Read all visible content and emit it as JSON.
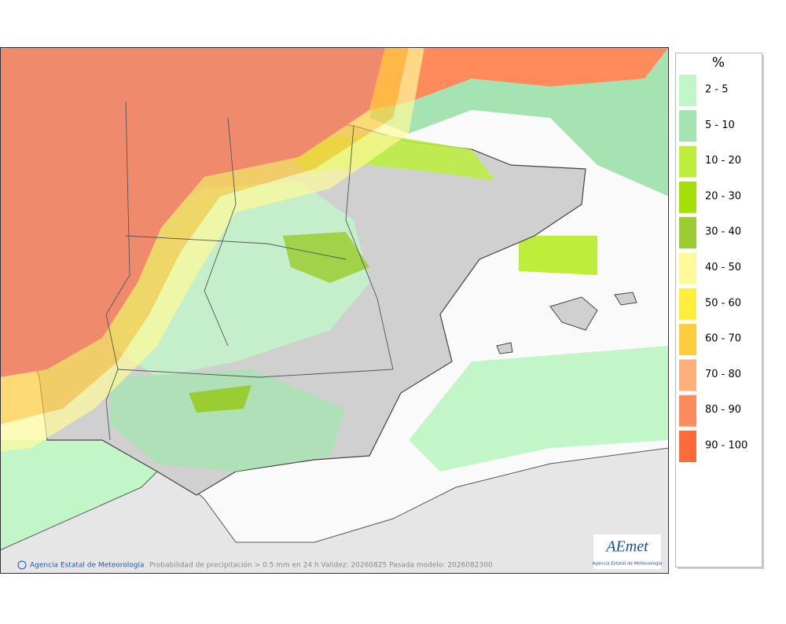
{
  "legend": {
    "title": "%",
    "items": [
      {
        "label": "2 - 5",
        "color": "#c2f5c8"
      },
      {
        "label": "5 - 10",
        "color": "#a6e3b2"
      },
      {
        "label": "10 - 20",
        "color": "#bdee3c"
      },
      {
        "label": "20 - 30",
        "color": "#a5df08"
      },
      {
        "label": "30 - 40",
        "color": "#9acd32"
      },
      {
        "label": "40 - 50",
        "color": "#fff99a"
      },
      {
        "label": "50 - 60",
        "color": "#ffee3a"
      },
      {
        "label": "60 - 70",
        "color": "#ffcc3e"
      },
      {
        "label": "70 - 80",
        "color": "#ffb07a"
      },
      {
        "label": "80 - 90",
        "color": "#ff8a5c"
      },
      {
        "label": "90 - 100",
        "color": "#ff6a3a"
      }
    ]
  },
  "footer": {
    "credit": "Agencia Estatal de Meteorología",
    "caption": "Probabilidad de precipitación > 0.5 mm en 24 h Validez: 20260825 Pasada modelo: 2026082300"
  },
  "logo": {
    "name": "AEmet",
    "subtitle": "Agencia Estatal de Meteorología"
  }
}
